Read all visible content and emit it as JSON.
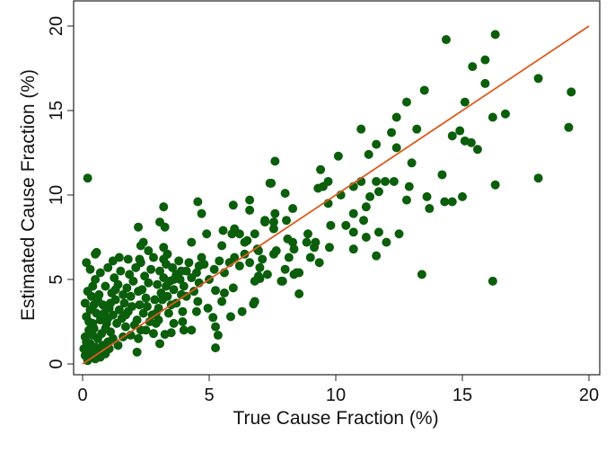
{
  "chart_data": {
    "type": "scatter",
    "title": "",
    "xlabel": "True Cause Fraction (%)",
    "ylabel": "Estimated Cause Fraction (%)",
    "xlim": [
      0,
      20
    ],
    "ylim": [
      0,
      20
    ],
    "xticks": [
      "0",
      "5",
      "10",
      "15",
      "20"
    ],
    "yticks": [
      "0",
      "5",
      "10",
      "15",
      "20"
    ],
    "grid": false,
    "legend": "none",
    "colors": {
      "points": "#0b5e0b",
      "line": "#dc5a1e"
    },
    "reference_line": {
      "label": "",
      "from": [
        0,
        0
      ],
      "to": [
        20,
        20
      ]
    },
    "points": [
      [
        14.36,
        19.2
      ],
      [
        16.3,
        19.5
      ],
      [
        15.4,
        17.6
      ],
      [
        15.9,
        18.0
      ],
      [
        15.9,
        16.6
      ],
      [
        18.0,
        16.9
      ],
      [
        19.3,
        16.1
      ],
      [
        19.2,
        14.0
      ],
      [
        15.1,
        15.5
      ],
      [
        16.2,
        14.6
      ],
      [
        16.7,
        14.8
      ],
      [
        13.5,
        16.2
      ],
      [
        12.8,
        15.5
      ],
      [
        12.4,
        14.6
      ],
      [
        12.2,
        13.7
      ],
      [
        13.2,
        13.9
      ],
      [
        11.0,
        13.9
      ],
      [
        11.6,
        13.0
      ],
      [
        11.3,
        12.4
      ],
      [
        12.4,
        12.8
      ],
      [
        13.0,
        11.9
      ],
      [
        14.6,
        13.5
      ],
      [
        14.9,
        13.8
      ],
      [
        15.1,
        13.2
      ],
      [
        15.35,
        13.1
      ],
      [
        15.6,
        12.7
      ],
      [
        14.2,
        11.2
      ],
      [
        16.3,
        10.6
      ],
      [
        18.0,
        11.0
      ],
      [
        13.4,
        5.3
      ],
      [
        16.2,
        4.9
      ],
      [
        10.1,
        12.3
      ],
      [
        9.4,
        11.5
      ],
      [
        7.6,
        12.0
      ],
      [
        7.4,
        10.7
      ],
      [
        9.7,
        10.8
      ],
      [
        9.3,
        10.4
      ],
      [
        9.5,
        10.5
      ],
      [
        8.0,
        10.1
      ],
      [
        11.0,
        10.8
      ],
      [
        10.7,
        10.5
      ],
      [
        11.6,
        10.8
      ],
      [
        11.95,
        10.8
      ],
      [
        12.3,
        10.8
      ],
      [
        12.9,
        10.5
      ],
      [
        11.7,
        10.2
      ],
      [
        11.35,
        9.9
      ],
      [
        11.2,
        9.3
      ],
      [
        12.8,
        9.7
      ],
      [
        13.6,
        9.9
      ],
      [
        13.7,
        9.2
      ],
      [
        14.3,
        9.6
      ],
      [
        14.6,
        9.6
      ],
      [
        15.0,
        9.9
      ],
      [
        10.2,
        10.0
      ],
      [
        9.7,
        9.5
      ],
      [
        8.3,
        9.2
      ],
      [
        7.6,
        8.9
      ],
      [
        7.2,
        8.5
      ],
      [
        7.55,
        8.4
      ],
      [
        8.05,
        8.5
      ],
      [
        10.7,
        8.9
      ],
      [
        11.1,
        8.5
      ],
      [
        9.8,
        8.2
      ],
      [
        10.4,
        8.2
      ],
      [
        10.7,
        7.8
      ],
      [
        11.2,
        7.5
      ],
      [
        11.7,
        7.8
      ],
      [
        12.0,
        7.2
      ],
      [
        12.5,
        7.7
      ],
      [
        10.7,
        6.8
      ],
      [
        11.6,
        6.4
      ],
      [
        9.75,
        6.9
      ],
      [
        8.9,
        7.7
      ],
      [
        8.85,
        7.2
      ],
      [
        9.2,
        7.2
      ],
      [
        9.15,
        6.9
      ],
      [
        9.35,
        6.0
      ],
      [
        9.0,
        6.3
      ],
      [
        8.3,
        7.2
      ],
      [
        8.1,
        7.4
      ],
      [
        8.35,
        6.8
      ],
      [
        8.15,
        6.3
      ],
      [
        8.0,
        5.6
      ],
      [
        8.45,
        5.4
      ],
      [
        7.85,
        4.9
      ],
      [
        7.3,
        5.3
      ],
      [
        6.8,
        7.7
      ],
      [
        6.95,
        6.7
      ],
      [
        7.1,
        6.2
      ],
      [
        7.0,
        5.7
      ],
      [
        7.55,
        8.0
      ],
      [
        7.65,
        6.7
      ],
      [
        7.55,
        6.5
      ],
      [
        0.2,
        11.0
      ],
      [
        3.2,
        9.3
      ],
      [
        4.55,
        9.6
      ],
      [
        4.7,
        8.9
      ],
      [
        6.6,
        9.7
      ],
      [
        6.6,
        9.1
      ],
      [
        5.95,
        9.4
      ],
      [
        7.45,
        10.7
      ],
      [
        3.05,
        8.4
      ],
      [
        3.25,
        8.1
      ],
      [
        2.2,
        8.1
      ],
      [
        2.4,
        7.2
      ],
      [
        2.3,
        7.0
      ],
      [
        2.6,
        6.7
      ],
      [
        3.2,
        6.9
      ],
      [
        3.35,
        6.5
      ],
      [
        4.9,
        7.7
      ],
      [
        4.3,
        7.2
      ],
      [
        5.55,
        7.9
      ],
      [
        6.0,
        8.0
      ],
      [
        6.2,
        7.7
      ],
      [
        5.9,
        7.7
      ],
      [
        7.2,
        8.4
      ],
      [
        6.4,
        7.2
      ],
      [
        6.5,
        7.3
      ],
      [
        5.5,
        7.0
      ],
      [
        0.5,
        6.5
      ],
      [
        0.55,
        6.6
      ],
      [
        0.15,
        6.0
      ],
      [
        1.45,
        6.3
      ],
      [
        1.8,
        6.2
      ],
      [
        2.25,
        6.2
      ],
      [
        8.55,
        4.15
      ],
      [
        8.35,
        5.3
      ],
      [
        8.55,
        5.4
      ],
      [
        7.9,
        4.9
      ],
      [
        7.0,
        5.05
      ],
      [
        6.8,
        4.9
      ],
      [
        6.95,
        5.2
      ],
      [
        6.8,
        3.7
      ],
      [
        6.75,
        3.55
      ],
      [
        6.3,
        3.1
      ],
      [
        5.85,
        2.8
      ],
      [
        5.95,
        4.5
      ],
      [
        5.25,
        0.95
      ],
      [
        5.35,
        1.7
      ],
      [
        5.25,
        2.2
      ],
      [
        5.15,
        2.75
      ],
      [
        4.95,
        3.3
      ],
      [
        4.5,
        3.1
      ],
      [
        4.3,
        2.0
      ],
      [
        4.0,
        2.0
      ],
      [
        3.95,
        2.5
      ],
      [
        3.05,
        1.2
      ],
      [
        3.25,
        1.75
      ],
      [
        3.5,
        1.85
      ],
      [
        2.15,
        0.7
      ],
      [
        0.9,
        0.6
      ],
      [
        0.5,
        0.3
      ],
      [
        3.95,
        3.1
      ],
      [
        3.6,
        2.4
      ],
      [
        3.7,
        3.6
      ],
      [
        4.55,
        3.7
      ],
      [
        5.5,
        3.7
      ],
      [
        5.6,
        4.2
      ],
      [
        5.25,
        4.35
      ],
      [
        0.1,
        0.5
      ],
      [
        0.2,
        0.8
      ],
      [
        0.3,
        1.2
      ],
      [
        0.1,
        1.6
      ],
      [
        0.25,
        2.0
      ],
      [
        0.4,
        2.4
      ],
      [
        0.15,
        2.8
      ],
      [
        0.3,
        3.2
      ],
      [
        0.1,
        3.6
      ],
      [
        0.35,
        4.0
      ],
      [
        0.5,
        1.0
      ],
      [
        0.6,
        1.5
      ],
      [
        0.45,
        2.1
      ],
      [
        0.7,
        2.6
      ],
      [
        0.55,
        3.0
      ],
      [
        0.8,
        3.5
      ],
      [
        0.65,
        4.1
      ],
      [
        0.9,
        4.6
      ],
      [
        0.4,
        4.6
      ],
      [
        0.2,
        4.3
      ],
      [
        1.0,
        1.3
      ],
      [
        1.1,
        1.9
      ],
      [
        0.95,
        2.4
      ],
      [
        1.2,
        2.9
      ],
      [
        1.05,
        3.3
      ],
      [
        1.3,
        3.8
      ],
      [
        1.15,
        4.2
      ],
      [
        1.4,
        4.7
      ],
      [
        1.25,
        5.1
      ],
      [
        1.5,
        5.5
      ],
      [
        1.6,
        1.6
      ],
      [
        1.7,
        2.2
      ],
      [
        1.55,
        2.7
      ],
      [
        1.8,
        3.1
      ],
      [
        1.65,
        3.6
      ],
      [
        1.9,
        4.0
      ],
      [
        1.75,
        4.5
      ],
      [
        2.0,
        4.9
      ],
      [
        1.85,
        5.3
      ],
      [
        2.1,
        5.7
      ],
      [
        2.2,
        1.5
      ],
      [
        2.3,
        2.0
      ],
      [
        2.15,
        2.6
      ],
      [
        2.4,
        3.0
      ],
      [
        2.25,
        3.5
      ],
      [
        2.5,
        3.9
      ],
      [
        2.35,
        4.4
      ],
      [
        2.6,
        4.8
      ],
      [
        2.45,
        5.2
      ],
      [
        2.7,
        5.6
      ],
      [
        2.8,
        1.8
      ],
      [
        2.9,
        2.4
      ],
      [
        2.75,
        2.9
      ],
      [
        3.0,
        3.3
      ],
      [
        2.85,
        3.8
      ],
      [
        3.1,
        4.2
      ],
      [
        2.95,
        4.7
      ],
      [
        3.2,
        5.1
      ],
      [
        3.05,
        5.5
      ],
      [
        3.3,
        5.9
      ],
      [
        3.4,
        3.0
      ],
      [
        3.5,
        3.5
      ],
      [
        3.35,
        4.0
      ],
      [
        3.6,
        4.4
      ],
      [
        3.45,
        4.9
      ],
      [
        3.7,
        5.3
      ],
      [
        3.55,
        5.7
      ],
      [
        3.8,
        6.1
      ],
      [
        3.9,
        4.1
      ],
      [
        4.0,
        4.6
      ],
      [
        3.85,
        5.0
      ],
      [
        4.1,
        5.5
      ],
      [
        4.2,
        6.0
      ],
      [
        4.4,
        4.3
      ],
      [
        4.6,
        4.8
      ],
      [
        4.5,
        5.4
      ],
      [
        4.8,
        5.9
      ],
      [
        4.7,
        6.3
      ],
      [
        5.0,
        5.0
      ],
      [
        5.2,
        5.6
      ],
      [
        5.4,
        6.1
      ],
      [
        5.6,
        5.4
      ],
      [
        5.8,
        6.0
      ],
      [
        6.0,
        6.3
      ],
      [
        6.2,
        5.8
      ],
      [
        6.4,
        6.5
      ],
      [
        6.6,
        6.0
      ],
      [
        6.9,
        6.8
      ],
      [
        0.05,
        0.9
      ],
      [
        0.35,
        0.6
      ],
      [
        0.6,
        0.8
      ],
      [
        0.8,
        1.1
      ],
      [
        0.75,
        1.8
      ],
      [
        0.9,
        2.1
      ],
      [
        1.0,
        2.7
      ],
      [
        1.2,
        1.5
      ],
      [
        1.35,
        2.4
      ],
      [
        1.45,
        3.2
      ],
      [
        0.15,
        1.3
      ],
      [
        0.25,
        2.5
      ],
      [
        0.45,
        3.5
      ],
      [
        0.6,
        3.8
      ],
      [
        0.85,
        3.0
      ],
      [
        1.1,
        3.6
      ],
      [
        1.3,
        4.4
      ],
      [
        1.6,
        4.1
      ],
      [
        1.7,
        2.9
      ],
      [
        1.95,
        3.4
      ],
      [
        2.05,
        2.3
      ],
      [
        2.2,
        4.3
      ],
      [
        2.55,
        3.4
      ],
      [
        2.65,
        2.5
      ],
      [
        2.9,
        3.0
      ],
      [
        3.15,
        3.8
      ],
      [
        3.3,
        4.6
      ],
      [
        3.6,
        5.0
      ],
      [
        3.9,
        5.5
      ],
      [
        4.1,
        4.0
      ],
      [
        4.3,
        5.1
      ],
      [
        4.6,
        5.8
      ],
      [
        0.5,
        5.0
      ],
      [
        0.7,
        5.4
      ],
      [
        1.0,
        5.7
      ],
      [
        1.2,
        6.1
      ],
      [
        0.3,
        5.6
      ],
      [
        2.3,
        6.0
      ],
      [
        2.8,
        6.3
      ],
      [
        3.2,
        6.2
      ],
      [
        1.4,
        1.1
      ],
      [
        1.9,
        1.7
      ],
      [
        2.5,
        2.0
      ],
      [
        3.0,
        2.6
      ],
      [
        0.2,
        0.2
      ],
      [
        0.4,
        1.7
      ],
      [
        0.7,
        0.4
      ],
      [
        1.05,
        0.9
      ]
    ]
  }
}
